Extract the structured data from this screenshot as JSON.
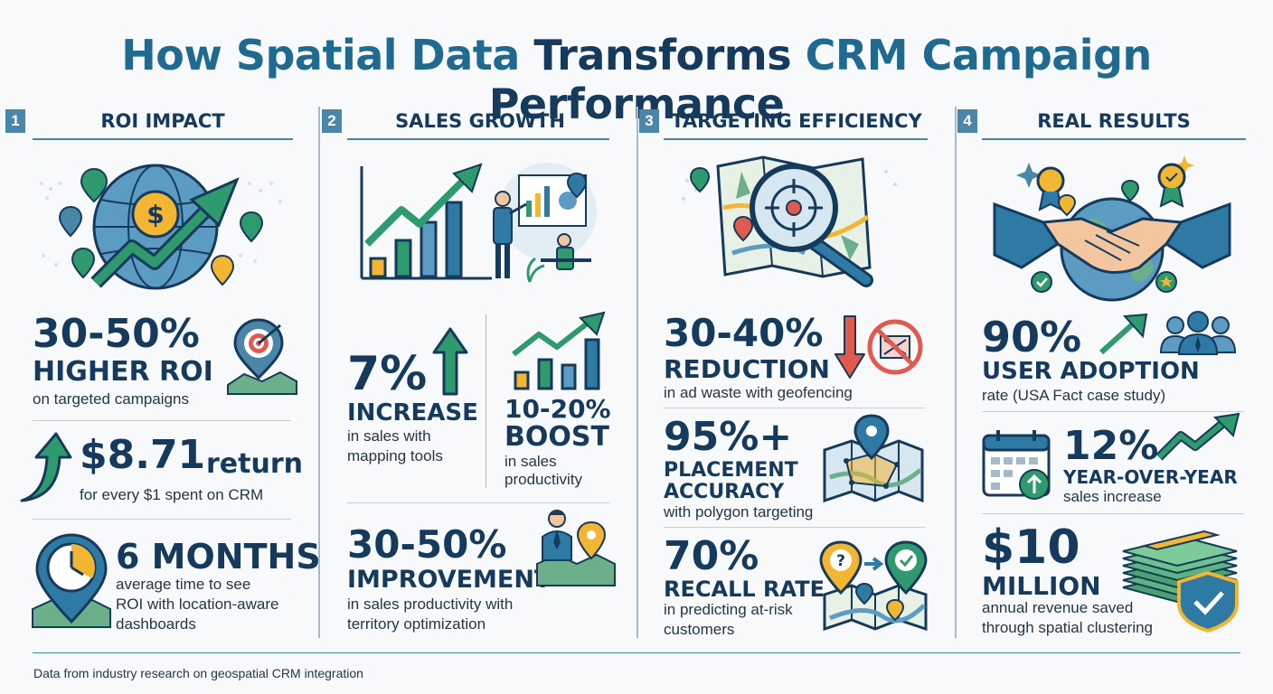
{
  "title": {
    "part1": "How Spatial Data ",
    "part2": "Transforms ",
    "part3": "CRM Campaign ",
    "part4": "Performance"
  },
  "colors": {
    "navy": "#163a5c",
    "teal": "#1f6a8e",
    "green": "#2e9a6e",
    "gold": "#f2b632",
    "accent_blue": "#4a86a8"
  },
  "panels": [
    {
      "number": "1",
      "title": "ROI IMPACT",
      "stats": [
        {
          "value": "30-50%",
          "label": "HIGHER ROI",
          "desc": "on targeted campaigns"
        },
        {
          "value": "$8.71",
          "value_suffix": "return",
          "desc": "for every $1 spent on CRM"
        },
        {
          "value": "6 MONTHS",
          "desc_lines": [
            "average time to see",
            "ROI with location-aware",
            "dashboards"
          ]
        }
      ]
    },
    {
      "number": "2",
      "title": "SALES GROWTH",
      "stats": [
        {
          "value": "7%",
          "label": "INCREASE",
          "desc_lines": [
            "in sales with",
            "mapping tools"
          ]
        },
        {
          "value": "10-20%",
          "label": "BOOST",
          "desc_lines": [
            "in sales",
            "productivity"
          ]
        },
        {
          "value": "30-50%",
          "label": "IMPROVEMENT",
          "desc_lines": [
            "in sales productivity with",
            "territory optimization"
          ]
        }
      ]
    },
    {
      "number": "3",
      "title": "TARGETING EFFICIENCY",
      "stats": [
        {
          "value": "30-40%",
          "label": "REDUCTION",
          "desc": "in ad waste with geofencing"
        },
        {
          "value": "95%+",
          "label_lines": [
            "PLACEMENT",
            "ACCURACY"
          ],
          "desc": "with polygon targeting"
        },
        {
          "value": "70%",
          "label": "RECALL RATE",
          "desc_lines": [
            "in predicting at-risk",
            "customers"
          ]
        }
      ]
    },
    {
      "number": "4",
      "title": "REAL RESULTS",
      "stats": [
        {
          "value": "90%",
          "label": "USER ADOPTION",
          "desc": "rate (USA Fact case study)"
        },
        {
          "value": "12%",
          "label": "YEAR-OVER-YEAR",
          "desc": "sales increase"
        },
        {
          "value": "$10",
          "label": "MILLION",
          "desc_lines": [
            "annual revenue saved",
            "through spatial clustering"
          ]
        }
      ]
    }
  ],
  "footer": "Data from industry research on geospatial CRM integration",
  "icons": [
    "globe-dollar-icon",
    "target-map-icon",
    "growth-arrow-icon",
    "clock-pin-icon",
    "bar-chart-icon",
    "presenter-icon",
    "up-arrow-icon",
    "businessman-pin-icon",
    "magnifier-map-icon",
    "down-arrow-icon",
    "no-ad-icon",
    "polygon-map-icon",
    "route-map-icon",
    "handshake-globe-icon",
    "users-icon",
    "calendar-icon",
    "money-shield-icon"
  ]
}
